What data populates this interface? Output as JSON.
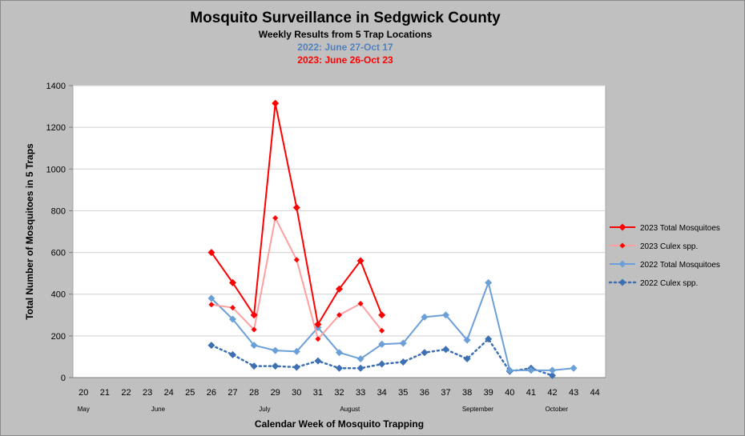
{
  "chart_data": {
    "type": "line",
    "title": "Mosquito Surveillance in Sedgwick County",
    "subtitle": "Weekly Results from 5 Trap Locations",
    "subtitle_2022": "2022: June 27-Oct 17",
    "subtitle_2023": "2023: June 26-Oct 23",
    "xlabel": "Calendar Week of Mosquito Trapping",
    "ylabel": "Total Number of Mosquitoes in 5 Traps",
    "ylim": [
      0,
      1400
    ],
    "yticks": [
      "0",
      "200",
      "400",
      "600",
      "800",
      "1000",
      "1200",
      "1400"
    ],
    "categories": [
      "20",
      "21",
      "22",
      "23",
      "24",
      "25",
      "26",
      "27",
      "28",
      "29",
      "30",
      "31",
      "32",
      "33",
      "34",
      "35",
      "36",
      "37",
      "38",
      "39",
      "40",
      "41",
      "42",
      "43",
      "44"
    ],
    "months": [
      {
        "label": "May",
        "week": 20
      },
      {
        "label": "June",
        "week": 23.5
      },
      {
        "label": "July",
        "week": 28.5
      },
      {
        "label": "August",
        "week": 32.5
      },
      {
        "label": "September",
        "week": 38.5
      },
      {
        "label": "October",
        "week": 42.2
      }
    ],
    "grid": true,
    "legend_position": "right",
    "series": [
      {
        "name": "2023 Total Mosquitoes",
        "color": "#ff0000",
        "style": "solid",
        "marker": "diamond",
        "x": [
          26,
          27,
          28,
          29,
          30,
          31,
          32,
          33,
          34
        ],
        "values": [
          600,
          455,
          300,
          1315,
          815,
          255,
          425,
          560,
          300
        ]
      },
      {
        "name": "2023 Culex spp.",
        "color": "#ff9f9f",
        "marker_color": "#ff0000",
        "style": "solid",
        "marker": "diamond-small",
        "x": [
          26,
          27,
          28,
          29,
          30,
          31,
          32,
          33,
          34
        ],
        "values": [
          350,
          335,
          230,
          765,
          565,
          185,
          300,
          355,
          225
        ]
      },
      {
        "name": "2022 Total Mosquitoes",
        "color": "#6a9fd8",
        "style": "solid",
        "marker": "diamond",
        "x": [
          26,
          27,
          28,
          29,
          30,
          31,
          32,
          33,
          34,
          35,
          36,
          37,
          38,
          39,
          40,
          41,
          42,
          43
        ],
        "values": [
          380,
          280,
          155,
          130,
          125,
          240,
          120,
          90,
          160,
          165,
          290,
          300,
          180,
          455,
          35,
          35,
          35,
          45
        ]
      },
      {
        "name": "2022 Culex spp.",
        "color": "#3d6fb3",
        "style": "dotted",
        "marker": "diamond",
        "x": [
          26,
          27,
          28,
          29,
          30,
          31,
          32,
          33,
          34,
          35,
          36,
          37,
          38,
          39,
          40,
          41,
          42
        ],
        "values": [
          155,
          110,
          55,
          55,
          50,
          80,
          45,
          45,
          65,
          75,
          120,
          135,
          90,
          185,
          30,
          45,
          10
        ]
      }
    ]
  }
}
